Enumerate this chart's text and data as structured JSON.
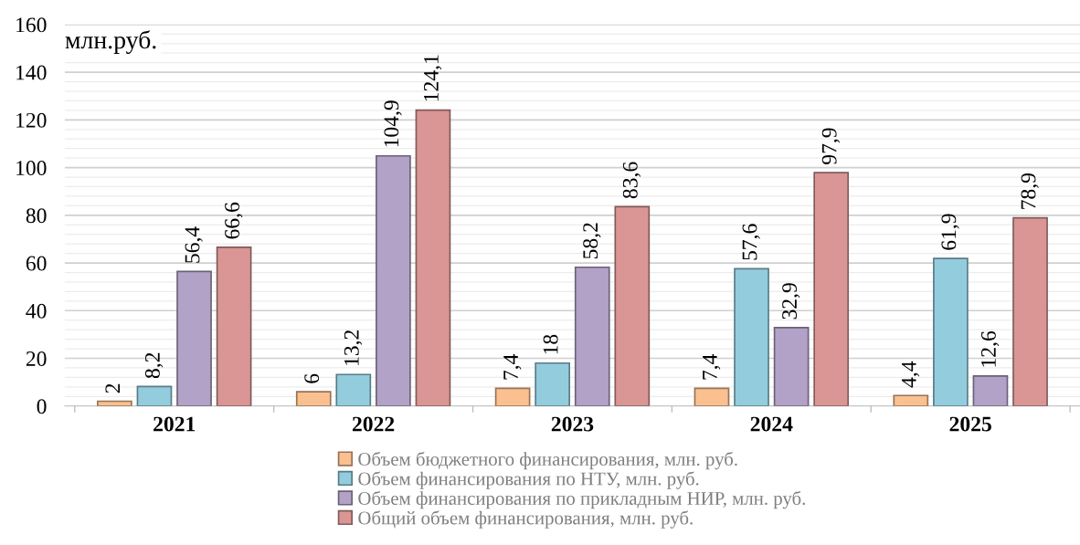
{
  "chart_data": {
    "type": "bar",
    "ylabel": "млн.руб.",
    "categories": [
      "2021",
      "2022",
      "2023",
      "2024",
      "2025"
    ],
    "series": [
      {
        "name": "Объем бюджетного финансирования, млн. руб.",
        "color": "#fac090",
        "values": [
          2,
          6,
          7.4,
          7.4,
          4.4
        ],
        "value_labels": [
          "2",
          "6",
          "7,4",
          "7,4",
          "4,4"
        ]
      },
      {
        "name": "Объем финансирования по НТУ, млн. руб.",
        "color": "#93cddd",
        "values": [
          8.2,
          13.2,
          18,
          57.6,
          61.9
        ],
        "value_labels": [
          "8,2",
          "13,2",
          "18",
          "57,6",
          "61,9"
        ]
      },
      {
        "name": "Объем финансирования по прикладным НИР, млн. руб.",
        "color": "#b3a2c7",
        "values": [
          56.4,
          104.9,
          58.2,
          32.9,
          12.6
        ],
        "value_labels": [
          "56,4",
          "104,9",
          "58,2",
          "32,9",
          "12,6"
        ]
      },
      {
        "name": "Общий объем финансирования, млн. руб.",
        "color": "#d99694",
        "values": [
          66.6,
          124.1,
          83.6,
          97.9,
          78.9
        ],
        "value_labels": [
          "66,6",
          "124,1",
          "83,6",
          "97,9",
          "78,9"
        ]
      }
    ],
    "ylim": [
      0,
      160
    ],
    "yticks": [
      0,
      20,
      40,
      60,
      80,
      100,
      120,
      140,
      160
    ],
    "grid": "y",
    "legend": "bottom"
  }
}
